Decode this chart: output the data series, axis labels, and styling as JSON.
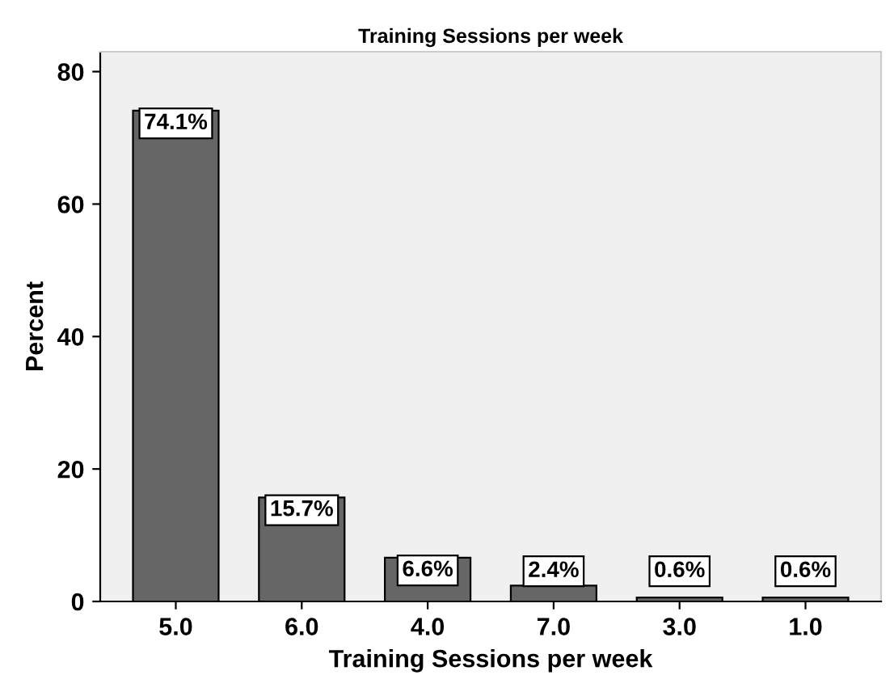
{
  "chart_data": {
    "type": "bar",
    "title": "Training Sessions per week",
    "xlabel": "Training Sessions per week",
    "ylabel": "Percent",
    "categories": [
      "5.0",
      "6.0",
      "4.0",
      "7.0",
      "3.0",
      "1.0"
    ],
    "values": [
      74.1,
      15.7,
      6.6,
      2.4,
      0.6,
      0.6
    ],
    "value_labels": [
      "74.1%",
      "15.7%",
      "6.6%",
      "2.4%",
      "0.6%",
      "0.6%"
    ],
    "color": "#666666",
    "ylim": [
      0,
      83
    ],
    "yticks": [
      0,
      20,
      40,
      60,
      80
    ],
    "grid": false,
    "legend": false
  }
}
